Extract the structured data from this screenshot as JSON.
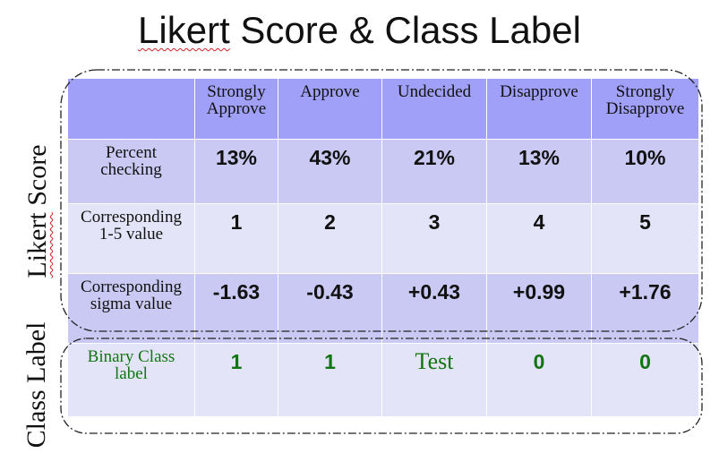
{
  "title": {
    "pre": "Likert",
    "post": " Score & Class Label"
  },
  "side_labels": {
    "likert_pre": "Likert",
    "likert_post": " Score",
    "class_label": "Class Label"
  },
  "table": {
    "columns": [
      "Strongly Approve",
      "Approve",
      "Undecided",
      "Disapprove",
      "Strongly Disapprove"
    ],
    "column_lines": [
      [
        "Strongly",
        "Approve"
      ],
      [
        "Approve"
      ],
      [
        "Undecided"
      ],
      [
        "Disapprove"
      ],
      [
        "Strongly",
        "Disapprove"
      ]
    ],
    "rows": [
      {
        "label_lines": [
          "Percent",
          "checking"
        ],
        "values": [
          "13%",
          "43%",
          "21%",
          "13%",
          "10%"
        ]
      },
      {
        "label_lines": [
          "Corresponding",
          "1-5  value"
        ],
        "values": [
          "1",
          "2",
          "3",
          "4",
          "5"
        ]
      },
      {
        "label_lines": [
          "Corresponding",
          "sigma  value"
        ],
        "values": [
          "-1.63",
          "-0.43",
          "+0.43",
          "+0.99",
          "+1.76"
        ]
      },
      {
        "label_lines": [
          "Binary Class",
          "label"
        ],
        "values": [
          "1",
          "1",
          "Test",
          "0",
          "0"
        ]
      }
    ]
  },
  "colors": {
    "header": "#a0a0f8",
    "row_dark": "#c9c9f4",
    "row_light": "#e4e4f8",
    "class_green": "#127412"
  }
}
